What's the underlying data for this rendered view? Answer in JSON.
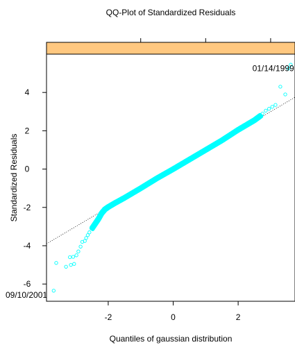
{
  "chart_data": {
    "type": "scatter",
    "title": "QQ-Plot of Standardized Residuals",
    "xlabel": "Quantiles of gaussian distribution",
    "ylabel": "Standardized Residuals",
    "xlim": [
      -3.9,
      3.75
    ],
    "ylim": [
      -6.9,
      6.0
    ],
    "x_ticks": [
      -2,
      0,
      2
    ],
    "y_ticks": [
      -6,
      -4,
      -2,
      0,
      2,
      4
    ],
    "grid": false,
    "strip_color": "#ffc880",
    "point_color": "#00ffff",
    "reference_line": {
      "slope": 1.0,
      "intercept": 0.0,
      "style": "dotted"
    },
    "annotations": [
      {
        "text": "01/14/1999",
        "x": 3.55,
        "y": 5.25
      },
      {
        "text": "09/10/2001",
        "x": -3.68,
        "y": -6.35
      }
    ],
    "tail_points": [
      {
        "x": -3.68,
        "y": -6.35
      },
      {
        "x": -3.3,
        "y": -5.1
      },
      {
        "x": -3.6,
        "y": -4.9
      },
      {
        "x": -3.15,
        "y": -5.0
      },
      {
        "x": -3.05,
        "y": -4.95
      },
      {
        "x": -3.18,
        "y": -4.6
      },
      {
        "x": -3.08,
        "y": -4.58
      },
      {
        "x": -2.98,
        "y": -4.5
      },
      {
        "x": -2.92,
        "y": -4.3
      },
      {
        "x": -2.85,
        "y": -4.05
      },
      {
        "x": -2.8,
        "y": -3.8
      },
      {
        "x": -2.72,
        "y": -3.75
      },
      {
        "x": -2.68,
        "y": -3.6
      },
      {
        "x": -2.63,
        "y": -3.45
      },
      {
        "x": -2.58,
        "y": -3.3
      },
      {
        "x": -2.52,
        "y": -3.1
      },
      {
        "x": 2.75,
        "y": 2.9
      },
      {
        "x": 2.85,
        "y": 3.05
      },
      {
        "x": 2.95,
        "y": 3.15
      },
      {
        "x": 3.05,
        "y": 3.25
      },
      {
        "x": 3.15,
        "y": 3.35
      },
      {
        "x": 3.3,
        "y": 4.3
      },
      {
        "x": 3.45,
        "y": 3.9
      },
      {
        "x": 3.55,
        "y": 5.25
      },
      {
        "x": 3.62,
        "y": 5.45
      }
    ],
    "body_curve": [
      [
        -2.5,
        -3.1
      ],
      [
        -2.4,
        -2.85
      ],
      [
        -2.3,
        -2.6
      ],
      [
        -2.2,
        -2.3
      ],
      [
        -2.1,
        -2.1
      ],
      [
        -2.0,
        -1.98
      ],
      [
        -1.8,
        -1.78
      ],
      [
        -1.5,
        -1.5
      ],
      [
        -1.0,
        -1.0
      ],
      [
        -0.5,
        -0.48
      ],
      [
        0.0,
        0.0
      ],
      [
        0.5,
        0.5
      ],
      [
        1.0,
        1.0
      ],
      [
        1.5,
        1.5
      ],
      [
        2.0,
        2.05
      ],
      [
        2.3,
        2.35
      ],
      [
        2.5,
        2.55
      ],
      [
        2.7,
        2.8
      ]
    ]
  }
}
